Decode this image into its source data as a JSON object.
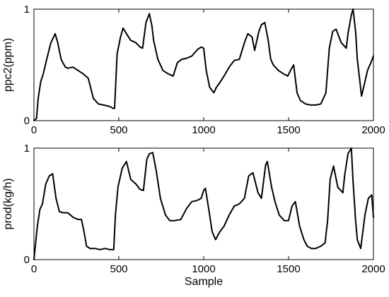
{
  "chart_data": [
    {
      "type": "line",
      "ylabel": "ppc2(ppm)",
      "xlabel": "",
      "xlim": [
        0,
        2000
      ],
      "ylim": [
        0,
        1
      ],
      "xticks": [
        "0",
        "500",
        "1000",
        "1500",
        "2000"
      ],
      "yticks": [
        "0",
        "1"
      ],
      "grid": false,
      "line_color": "#000000",
      "x": [
        0,
        15,
        25,
        40,
        55,
        75,
        100,
        125,
        140,
        160,
        185,
        200,
        230,
        260,
        290,
        320,
        350,
        380,
        410,
        440,
        455,
        465,
        475,
        490,
        510,
        525,
        545,
        570,
        600,
        625,
        640,
        660,
        680,
        695,
        705,
        730,
        760,
        790,
        820,
        845,
        870,
        900,
        930,
        965,
        985,
        1000,
        1015,
        1035,
        1060,
        1075,
        1090,
        1120,
        1150,
        1180,
        1210,
        1240,
        1260,
        1285,
        1300,
        1325,
        1340,
        1360,
        1380,
        1395,
        1410,
        1440,
        1470,
        1495,
        1515,
        1530,
        1550,
        1570,
        1600,
        1630,
        1660,
        1690,
        1720,
        1740,
        1760,
        1780,
        1810,
        1840,
        1850,
        1870,
        1880,
        1895,
        1905,
        1930,
        1950,
        1965,
        1985,
        2000
      ],
      "y": [
        0.0,
        0.02,
        0.2,
        0.35,
        0.42,
        0.55,
        0.7,
        0.78,
        0.7,
        0.55,
        0.48,
        0.47,
        0.48,
        0.45,
        0.42,
        0.38,
        0.2,
        0.15,
        0.14,
        0.13,
        0.12,
        0.11,
        0.11,
        0.6,
        0.75,
        0.83,
        0.78,
        0.72,
        0.7,
        0.66,
        0.65,
        0.88,
        0.96,
        0.85,
        0.72,
        0.55,
        0.45,
        0.42,
        0.4,
        0.52,
        0.55,
        0.56,
        0.58,
        0.64,
        0.66,
        0.65,
        0.45,
        0.3,
        0.25,
        0.3,
        0.33,
        0.4,
        0.48,
        0.54,
        0.55,
        0.7,
        0.78,
        0.75,
        0.63,
        0.8,
        0.86,
        0.88,
        0.72,
        0.55,
        0.5,
        0.45,
        0.42,
        0.4,
        0.46,
        0.5,
        0.25,
        0.18,
        0.15,
        0.14,
        0.14,
        0.15,
        0.25,
        0.65,
        0.8,
        0.82,
        0.7,
        0.65,
        0.78,
        0.95,
        1.0,
        0.8,
        0.55,
        0.22,
        0.35,
        0.45,
        0.52,
        0.58
      ]
    },
    {
      "type": "line",
      "ylabel": "prod(kg/h)",
      "xlabel": "Sample",
      "xlim": [
        0,
        2000
      ],
      "ylim": [
        0,
        1
      ],
      "xticks": [
        "0",
        "500",
        "1000",
        "1500",
        "2000"
      ],
      "yticks": [
        "0",
        "1"
      ],
      "grid": false,
      "line_color": "#000000",
      "x": [
        0,
        10,
        20,
        35,
        50,
        70,
        90,
        110,
        130,
        150,
        175,
        200,
        230,
        260,
        280,
        295,
        310,
        330,
        360,
        390,
        420,
        445,
        460,
        470,
        480,
        495,
        520,
        545,
        570,
        600,
        625,
        645,
        665,
        680,
        700,
        720,
        745,
        775,
        800,
        830,
        865,
        900,
        930,
        960,
        985,
        1000,
        1010,
        1030,
        1050,
        1070,
        1095,
        1120,
        1150,
        1180,
        1210,
        1240,
        1265,
        1290,
        1320,
        1340,
        1365,
        1375,
        1400,
        1420,
        1445,
        1475,
        1500,
        1520,
        1540,
        1565,
        1590,
        1610,
        1635,
        1660,
        1690,
        1715,
        1730,
        1745,
        1765,
        1790,
        1820,
        1830,
        1850,
        1870,
        1880,
        1895,
        1905,
        1925,
        1950,
        1970,
        1990,
        2000
      ],
      "y": [
        0.0,
        0.15,
        0.3,
        0.45,
        0.5,
        0.68,
        0.75,
        0.77,
        0.55,
        0.43,
        0.42,
        0.42,
        0.38,
        0.36,
        0.36,
        0.25,
        0.12,
        0.1,
        0.1,
        0.09,
        0.1,
        0.09,
        0.09,
        0.09,
        0.4,
        0.65,
        0.82,
        0.88,
        0.72,
        0.68,
        0.63,
        0.62,
        0.9,
        0.95,
        0.96,
        0.8,
        0.55,
        0.4,
        0.35,
        0.35,
        0.36,
        0.46,
        0.52,
        0.53,
        0.55,
        0.62,
        0.64,
        0.45,
        0.25,
        0.18,
        0.25,
        0.3,
        0.4,
        0.48,
        0.5,
        0.55,
        0.75,
        0.78,
        0.6,
        0.55,
        0.85,
        0.88,
        0.65,
        0.52,
        0.4,
        0.35,
        0.35,
        0.48,
        0.52,
        0.3,
        0.18,
        0.12,
        0.1,
        0.1,
        0.12,
        0.15,
        0.35,
        0.72,
        0.84,
        0.65,
        0.6,
        0.75,
        0.95,
        1.0,
        0.7,
        0.35,
        0.18,
        0.1,
        0.4,
        0.55,
        0.58,
        0.38
      ]
    }
  ]
}
